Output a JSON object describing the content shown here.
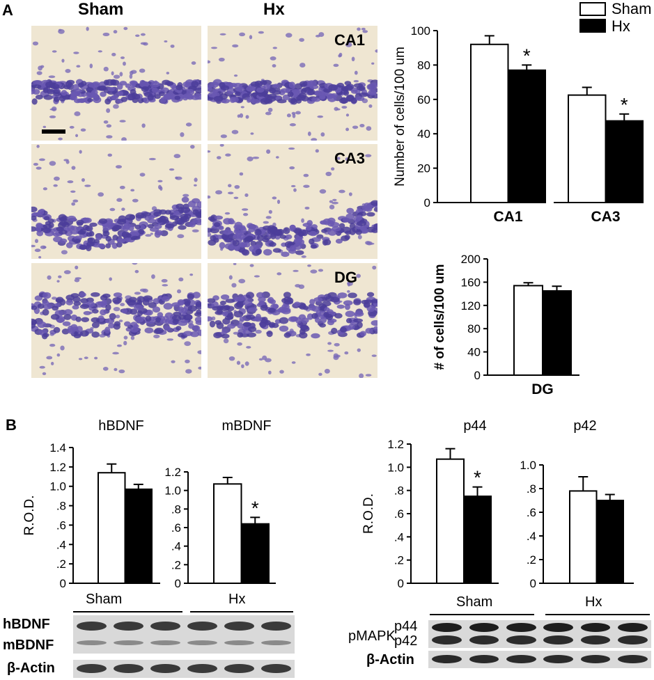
{
  "panels": {
    "a_letter": "A",
    "b_letter": "B"
  },
  "histology": {
    "columns": [
      "Sham",
      "Hx"
    ],
    "rows": [
      {
        "label": "CA1"
      },
      {
        "label": "CA3"
      },
      {
        "label": "DG"
      }
    ]
  },
  "legend": {
    "items": [
      {
        "label": "Sham",
        "color": "#ffffff"
      },
      {
        "label": "Hx",
        "color": "#000000"
      }
    ]
  },
  "chart_data": [
    {
      "id": "a_ca",
      "type": "bar",
      "ylabel": "Number of cells/100 um",
      "ylim": [
        0,
        100
      ],
      "yticks": [
        0,
        20,
        40,
        60,
        80,
        100
      ],
      "groups": [
        {
          "category": "CA1",
          "sham": 92,
          "sham_err": 5,
          "hx": 77,
          "hx_err": 3,
          "sig": "*"
        },
        {
          "category": "CA3",
          "sham": 62.5,
          "sham_err": 4.5,
          "hx": 47.5,
          "hx_err": 4,
          "sig": "*"
        }
      ]
    },
    {
      "id": "a_dg",
      "type": "bar",
      "ylabel": "# of cells/100 um",
      "ylim": [
        0,
        200
      ],
      "yticks": [
        0,
        40,
        80,
        120,
        160,
        200
      ],
      "groups": [
        {
          "category": "DG",
          "sham": 154,
          "sham_err": 5,
          "hx": 145,
          "hx_err": 8,
          "sig": ""
        }
      ]
    },
    {
      "id": "b_hbdnf",
      "type": "bar",
      "title": "hBDNF",
      "ylabel": "R.O.D.",
      "ylim": [
        0,
        1.4
      ],
      "yticks": [
        0,
        0.2,
        0.4,
        0.6,
        0.8,
        1.0,
        1.2,
        1.4
      ],
      "ytick_labels": [
        "0",
        ".2",
        ".4",
        ".6",
        ".8",
        "1.0",
        "1.2",
        "1.4"
      ],
      "groups": [
        {
          "category": "",
          "sham": 1.14,
          "sham_err": 0.09,
          "hx": 0.97,
          "hx_err": 0.05,
          "sig": ""
        }
      ]
    },
    {
      "id": "b_mbdnf",
      "type": "bar",
      "title": "mBDNF",
      "ylim": [
        0,
        1.2
      ],
      "yticks": [
        0,
        0.2,
        0.4,
        0.6,
        0.8,
        1.0,
        1.2
      ],
      "ytick_labels": [
        "0",
        ".2",
        ".4",
        ".6",
        ".8",
        "1.0",
        "1.2"
      ],
      "groups": [
        {
          "category": "",
          "sham": 1.07,
          "sham_err": 0.07,
          "hx": 0.64,
          "hx_err": 0.07,
          "sig": "*"
        }
      ]
    },
    {
      "id": "b_p44",
      "type": "bar",
      "title": "p44",
      "ylabel": "R.O.D.",
      "ylim": [
        0,
        1.2
      ],
      "yticks": [
        0,
        0.2,
        0.4,
        0.6,
        0.8,
        1.0,
        1.2
      ],
      "ytick_labels": [
        "0",
        ".2",
        ".4",
        ".6",
        ".8",
        "1.0",
        "1.2"
      ],
      "groups": [
        {
          "category": "",
          "sham": 1.07,
          "sham_err": 0.09,
          "hx": 0.75,
          "hx_err": 0.08,
          "sig": "*"
        }
      ]
    },
    {
      "id": "b_p42",
      "type": "bar",
      "title": "p42",
      "ylim": [
        0,
        1.0
      ],
      "yticks": [
        0,
        0.2,
        0.4,
        0.6,
        0.8,
        1.0
      ],
      "ytick_labels": [
        "0",
        ".2",
        ".4",
        ".6",
        ".8",
        "1.0"
      ],
      "groups": [
        {
          "category": "",
          "sham": 0.78,
          "sham_err": 0.12,
          "hx": 0.7,
          "hx_err": 0.05,
          "sig": ""
        }
      ]
    }
  ],
  "blots": {
    "left": {
      "group_labels": [
        "Sham",
        "Hx"
      ],
      "row_labels": [
        "hBDNF",
        "mBDNF",
        "β-Actin"
      ]
    },
    "right": {
      "group_labels": [
        "Sham",
        "Hx"
      ],
      "prefix": "pMAPK",
      "row_labels": [
        "p44",
        "p42",
        "β-Actin"
      ]
    }
  }
}
